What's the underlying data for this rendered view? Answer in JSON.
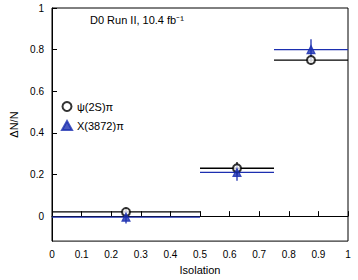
{
  "chart_data": {
    "type": "scatter",
    "annotation": "D0 Run II, 10.4 fb⁻¹",
    "x_label": "Isolation",
    "y_label": "ΔN/N",
    "bins": [
      0,
      0.5,
      0.75,
      1
    ],
    "series": [
      {
        "name": "ψ(2S)π",
        "color": "#000000",
        "marker": "open_circle",
        "values": [
          0.02,
          0.23,
          0.75
        ],
        "errors": [
          0.02,
          0.03,
          0.02
        ]
      },
      {
        "name": "X(3872)π",
        "color": "#1c2fb0",
        "marker": "triangle",
        "values": [
          -0.005,
          0.21,
          0.8
        ],
        "errors": [
          0.03,
          0.04,
          0.05
        ]
      }
    ],
    "xlim": [
      0,
      1
    ],
    "xticks": [
      0,
      0.1,
      0.2,
      0.3,
      0.4,
      0.5,
      0.6,
      0.7,
      0.8,
      0.9,
      1
    ],
    "ylim": [
      -0.12,
      1
    ],
    "yticks": [
      0,
      0.2,
      0.4,
      0.6,
      0.8,
      1
    ],
    "legend": "upper left"
  }
}
